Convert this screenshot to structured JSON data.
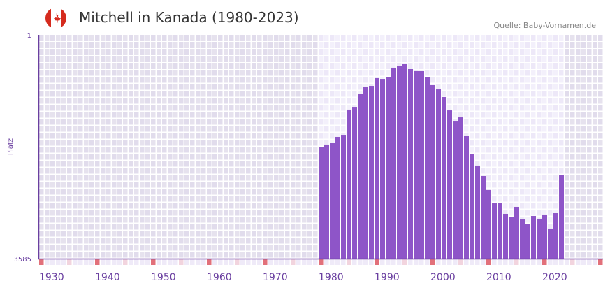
{
  "header": {
    "title": "Mitchell in Kanada (1980-2023)",
    "source": "Quelle: Baby-Vornamen.de",
    "flag_icon": "canada-flag-icon"
  },
  "chart_data": {
    "type": "bar",
    "title": "Mitchell in Kanada (1980-2023)",
    "xlabel": "",
    "ylabel": "Platz",
    "ylim": [
      3585,
      1
    ],
    "y_ticks": [
      "1",
      "3585"
    ],
    "xlim": [
      1930,
      2030
    ],
    "x_ticks": [
      "1930",
      "1940",
      "1950",
      "1960",
      "1970",
      "1980",
      "1990",
      "2000",
      "2010",
      "2020"
    ],
    "highlight_range": [
      1980,
      2023
    ],
    "bar_color": "#8e55c8",
    "x": [
      1980,
      1981,
      1982,
      1983,
      1984,
      1985,
      1986,
      1987,
      1988,
      1989,
      1990,
      1991,
      1992,
      1993,
      1994,
      1995,
      1996,
      1997,
      1998,
      1999,
      2000,
      2001,
      2002,
      2003,
      2004,
      2005,
      2006,
      2007,
      2008,
      2009,
      2010,
      2011,
      2012,
      2013,
      2014,
      2015,
      2016,
      2017,
      2018,
      2019,
      2020,
      2021,
      2022,
      2023
    ],
    "values": [
      1793,
      1759,
      1726,
      1636,
      1603,
      1199,
      1155,
      953,
      830,
      819,
      695,
      707,
      673,
      527,
      505,
      471,
      539,
      572,
      572,
      673,
      807,
      875,
      998,
      1211,
      1379,
      1323,
      1625,
      1905,
      2095,
      2263,
      2487,
      2700,
      2700,
      2868,
      2924,
      2756,
      2958,
      3025,
      2902,
      2946,
      2879,
      3103,
      2857,
      2252
    ]
  }
}
